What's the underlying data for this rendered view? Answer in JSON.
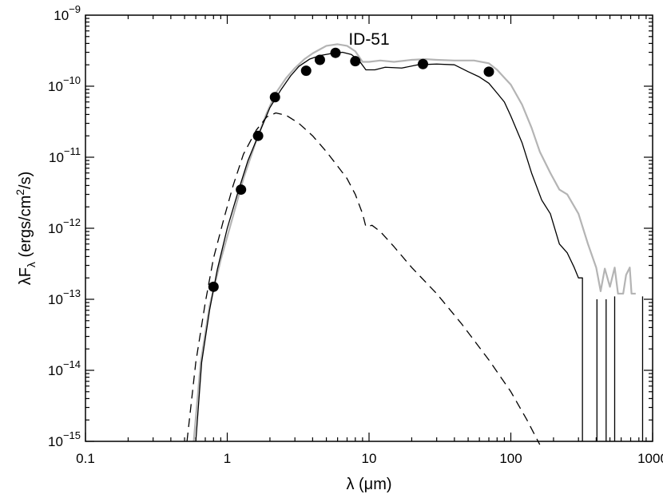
{
  "chart_data": {
    "type": "line",
    "title": "ID-51",
    "xlabel": "λ (μm)",
    "ylabel": "λF_λ (ergs/cm^2/s)",
    "x_scale": "log",
    "y_scale": "log",
    "xlim": [
      0.1,
      1000
    ],
    "ylim": [
      1e-15,
      1e-09
    ],
    "x_ticks": [
      {
        "value": 0.1,
        "label": "0.1"
      },
      {
        "value": 1,
        "label": "1"
      },
      {
        "value": 10,
        "label": "10"
      },
      {
        "value": 100,
        "label": "100"
      },
      {
        "value": 1000,
        "label": "1000"
      }
    ],
    "y_ticks": [
      {
        "value": 1e-15,
        "base": "10",
        "exp": "−15"
      },
      {
        "value": 1e-14,
        "base": "10",
        "exp": "−14"
      },
      {
        "value": 1e-13,
        "base": "10",
        "exp": "−13"
      },
      {
        "value": 1e-12,
        "base": "10",
        "exp": "−12"
      },
      {
        "value": 1e-11,
        "base": "10",
        "exp": "−11"
      },
      {
        "value": 1e-10,
        "base": "10",
        "exp": "−10"
      },
      {
        "value": 1e-09,
        "base": "10",
        "exp": "−9"
      }
    ],
    "grid": false,
    "series": [
      {
        "style": "gray-solid",
        "color": "#b4b4b4",
        "points": [
          [
            0.58,
            1e-15
          ],
          [
            0.65,
            1.3e-14
          ],
          [
            0.75,
            8e-14
          ],
          [
            0.9,
            3.6e-13
          ],
          [
            1.1,
            1.5e-12
          ],
          [
            1.3,
            5e-12
          ],
          [
            1.6,
            1.7e-11
          ],
          [
            1.9,
            4.2e-11
          ],
          [
            2.2,
            8e-11
          ],
          [
            2.6,
            1.3e-10
          ],
          [
            3,
            1.8e-10
          ],
          [
            3.5,
            2.4e-10
          ],
          [
            4,
            2.9e-10
          ],
          [
            4.5,
            3.3e-10
          ],
          [
            5,
            3.7e-10
          ],
          [
            6,
            3.9e-10
          ],
          [
            7,
            3.7e-10
          ],
          [
            8,
            3.1e-10
          ],
          [
            9,
            2.2e-10
          ],
          [
            10,
            2.2e-10
          ],
          [
            12,
            2.3e-10
          ],
          [
            15,
            2.2e-10
          ],
          [
            20,
            2.35e-10
          ],
          [
            25,
            2.4e-10
          ],
          [
            30,
            2.35e-10
          ],
          [
            40,
            2.3e-10
          ],
          [
            55,
            2.3e-10
          ],
          [
            70,
            2.1e-10
          ],
          [
            80,
            1.7e-10
          ],
          [
            100,
            1.05e-10
          ],
          [
            120,
            5.5e-11
          ],
          [
            140,
            2.6e-11
          ],
          [
            160,
            1.2e-11
          ],
          [
            190,
            6e-12
          ],
          [
            220,
            3.5e-12
          ],
          [
            250,
            3e-12
          ],
          [
            300,
            1.6e-12
          ],
          [
            350,
            6e-13
          ],
          [
            400,
            2.8e-13
          ],
          [
            430,
            1.3e-13
          ],
          [
            460,
            2.7e-13
          ],
          [
            500,
            1.5e-13
          ],
          [
            540,
            2.8e-13
          ],
          [
            570,
            1.2e-13
          ],
          [
            620,
            1.2e-13
          ],
          [
            650,
            2.2e-13
          ],
          [
            690,
            2.8e-13
          ],
          [
            710,
            1.2e-13
          ],
          [
            760,
            1.2e-13
          ]
        ]
      },
      {
        "style": "black-solid",
        "color": "#000000",
        "points": [
          [
            0.6,
            1e-15
          ],
          [
            0.66,
            1.3e-14
          ],
          [
            0.75,
            7e-14
          ],
          [
            0.85,
            2.6e-13
          ],
          [
            1,
            1e-12
          ],
          [
            1.2,
            3.4e-12
          ],
          [
            1.4,
            9e-12
          ],
          [
            1.7,
            2.3e-11
          ],
          [
            2,
            5e-11
          ],
          [
            2.4,
            9e-11
          ],
          [
            2.8,
            1.4e-10
          ],
          [
            3.2,
            1.9e-10
          ],
          [
            3.8,
            2.4e-10
          ],
          [
            4.5,
            2.7e-10
          ],
          [
            5.5,
            2.9e-10
          ],
          [
            6.5,
            3e-10
          ],
          [
            7.5,
            2.8e-10
          ],
          [
            8.5,
            2.3e-10
          ],
          [
            9.5,
            1.7e-10
          ],
          [
            11,
            1.7e-10
          ],
          [
            13,
            1.85e-10
          ],
          [
            17,
            1.8e-10
          ],
          [
            22,
            2e-10
          ],
          [
            30,
            2.05e-10
          ],
          [
            40,
            2e-10
          ],
          [
            50,
            1.6e-10
          ],
          [
            60,
            1.35e-10
          ],
          [
            70,
            1.1e-10
          ],
          [
            80,
            8e-11
          ],
          [
            90,
            6e-11
          ],
          [
            100,
            3.8e-11
          ],
          [
            120,
            1.6e-11
          ],
          [
            140,
            6e-12
          ],
          [
            165,
            2.5e-12
          ],
          [
            190,
            1.6e-12
          ],
          [
            220,
            6e-13
          ],
          [
            250,
            4.5e-13
          ],
          [
            280,
            2.8e-13
          ],
          [
            300,
            2e-13
          ],
          [
            320,
            2e-13
          ],
          [
            320,
            1e-15
          ]
        ]
      },
      {
        "style": "black-spikes",
        "color": "#000000",
        "points": [
          [
            405,
            1e-13
          ],
          [
            405,
            1e-15
          ],
          [
            null,
            null
          ],
          [
            470,
            1e-13
          ],
          [
            470,
            1e-15
          ],
          [
            null,
            null
          ],
          [
            540,
            1.1e-13
          ],
          [
            540,
            1e-15
          ],
          [
            null,
            null
          ],
          [
            850,
            1.1e-13
          ],
          [
            850,
            1e-15
          ]
        ]
      },
      {
        "style": "black-dashed",
        "color": "#000000",
        "points": [
          [
            0.52,
            1e-15
          ],
          [
            0.6,
            1.3e-14
          ],
          [
            0.7,
            9e-14
          ],
          [
            0.8,
            3.8e-13
          ],
          [
            0.95,
            1.4e-12
          ],
          [
            1.1,
            4e-12
          ],
          [
            1.3,
            1.1e-11
          ],
          [
            1.6,
            2.4e-11
          ],
          [
            1.9,
            3.7e-11
          ],
          [
            2.2,
            4.2e-11
          ],
          [
            2.6,
            3.9e-11
          ],
          [
            3.2,
            3e-11
          ],
          [
            4,
            2e-11
          ],
          [
            5,
            1.2e-11
          ],
          [
            6,
            7.5e-12
          ],
          [
            7,
            5e-12
          ],
          [
            8,
            3e-12
          ],
          [
            9,
            1.6e-12
          ],
          [
            9.5,
            1.05e-12
          ],
          [
            10.5,
            1.1e-12
          ],
          [
            12,
            9e-13
          ],
          [
            15,
            5.5e-13
          ],
          [
            20,
            2.8e-13
          ],
          [
            30,
            1.2e-13
          ],
          [
            45,
            4.5e-14
          ],
          [
            70,
            1.4e-14
          ],
          [
            100,
            5e-15
          ],
          [
            130,
            2e-15
          ],
          [
            160,
            9e-16
          ]
        ]
      }
    ],
    "markers": [
      [
        0.8,
        1.5e-13
      ],
      [
        1.25,
        3.5e-12
      ],
      [
        1.65,
        2e-11
      ],
      [
        2.17,
        7e-11
      ],
      [
        3.6,
        1.65e-10
      ],
      [
        4.5,
        2.35e-10
      ],
      [
        5.8,
        2.95e-10
      ],
      [
        8,
        2.25e-10
      ],
      [
        24,
        2.05e-10
      ],
      [
        70,
        1.6e-10
      ]
    ]
  }
}
